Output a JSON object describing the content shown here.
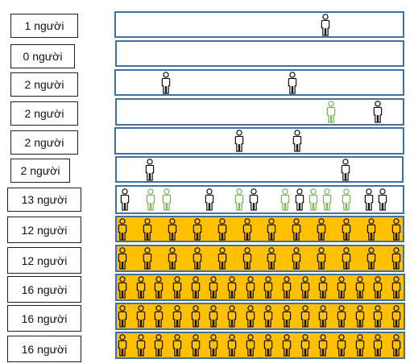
{
  "rows": [
    {
      "label": "1 người",
      "count": 1,
      "filled": false,
      "person_color": "#000000",
      "highlight_color": "#70ad47",
      "highlights": []
    },
    {
      "label": "0 người",
      "count": 0,
      "filled": false,
      "person_color": "#000000",
      "highlight_color": "#70ad47",
      "highlights": []
    },
    {
      "label": "2 người",
      "count": 2,
      "filled": false,
      "person_color": "#000000",
      "highlight_color": "#70ad47",
      "highlights": []
    },
    {
      "label": "2 người",
      "count": 2,
      "filled": false,
      "person_color": "#000000",
      "highlight_color": "#70ad47",
      "highlights": [
        0
      ]
    },
    {
      "label": "2 người",
      "count": 2,
      "filled": false,
      "person_color": "#000000",
      "highlight_color": "#70ad47",
      "highlights": []
    },
    {
      "label": "2 người",
      "count": 2,
      "filled": false,
      "person_color": "#000000",
      "highlight_color": "#70ad47",
      "highlights": []
    },
    {
      "label": "13 người",
      "count": 13,
      "filled": false,
      "person_color": "#000000",
      "highlight_color": "#70ad47",
      "highlights": [
        1,
        2,
        4,
        6,
        8,
        9,
        10
      ]
    },
    {
      "label": "12 người",
      "count": 12,
      "filled": true,
      "person_color": "#000000",
      "highlight_color": "#70ad47",
      "highlights": []
    },
    {
      "label": "12 người",
      "count": 12,
      "filled": true,
      "person_color": "#000000",
      "highlight_color": "#70ad47",
      "highlights": []
    },
    {
      "label": "16 người",
      "count": 16,
      "filled": true,
      "person_color": "#000000",
      "highlight_color": "#70ad47",
      "highlights": []
    },
    {
      "label": "16 người",
      "count": 16,
      "filled": true,
      "person_color": "#000000",
      "highlight_color": "#70ad47",
      "highlights": []
    },
    {
      "label": "16 người",
      "count": 16,
      "filled": true,
      "person_color": "#000000",
      "highlight_color": "#70ad47",
      "highlights": []
    }
  ],
  "colors": {
    "bar_border": "#41719c",
    "bar_fill": "#ffc000",
    "empty_fill": "#ffffff"
  }
}
